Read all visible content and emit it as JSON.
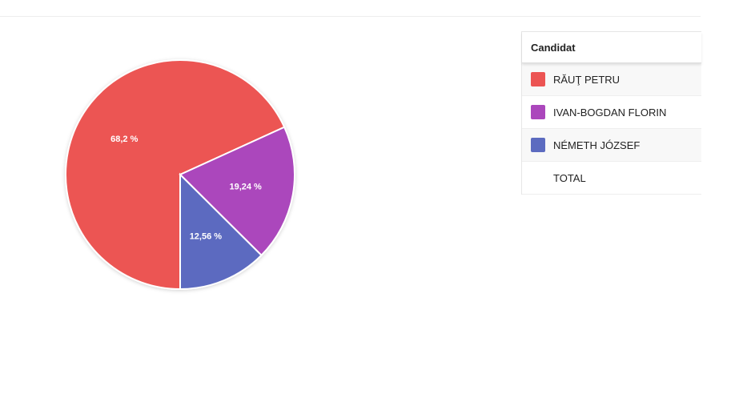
{
  "chart_data": {
    "type": "pie",
    "title": "",
    "categories": [
      "RĂUŢ PETRU",
      "IVAN-BOGDAN FLORIN",
      "NÉMETH JÓZSEF"
    ],
    "values": [
      68.2,
      19.24,
      12.56
    ],
    "labels": [
      "68,2 %",
      "19,24 %",
      "12,56 %"
    ],
    "colors": [
      "#ec5453",
      "#ab47bc",
      "#5c6bc0"
    ],
    "legend": "table-right"
  },
  "legend_table": {
    "header": "Candidat",
    "rows": [
      {
        "name": "RĂUŢ PETRU",
        "color": "#ec5453"
      },
      {
        "name": "IVAN-BOGDAN FLORIN",
        "color": "#ab47bc"
      },
      {
        "name": "NÉMETH JÓZSEF",
        "color": "#5c6bc0"
      }
    ],
    "total_label": "TOTAL"
  }
}
